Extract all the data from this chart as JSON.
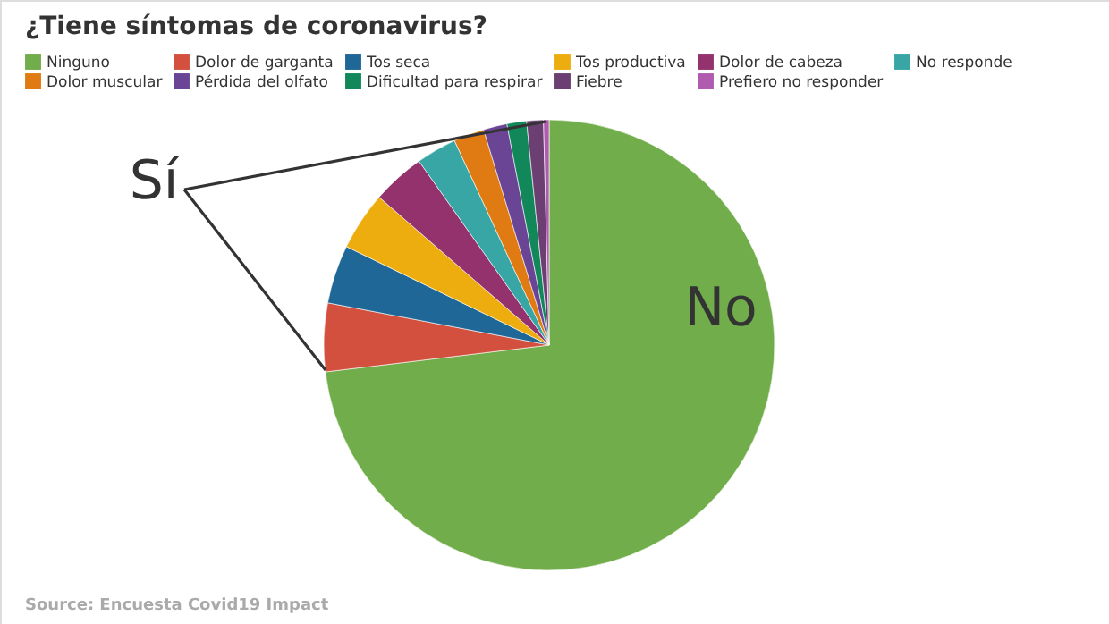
{
  "chart_data": {
    "type": "pie",
    "title": "¿Tiene síntomas de coronavirus?",
    "categories": [
      "Ninguno",
      "Dolor de garganta",
      "Tos seca",
      "Tos productiva",
      "Dolor de cabeza",
      "No responde",
      "Dolor muscular",
      "Pérdida del olfato",
      "Dificultad para respirar",
      "Fiebre",
      "Prefiero no responder"
    ],
    "values": [
      73.1,
      4.9,
      4.2,
      4.2,
      3.8,
      2.9,
      2.2,
      1.7,
      1.4,
      1.2,
      0.4
    ],
    "colors": [
      "#72ad4b",
      "#d2503d",
      "#1e6796",
      "#eead0f",
      "#94326e",
      "#39a6a6",
      "#e07b13",
      "#6a4596",
      "#12885a",
      "#6c3f73",
      "#b05bb0"
    ],
    "legend": "top",
    "annotations": [
      "Sí",
      "No",
      "Source: Encuesta Covid19 Impact"
    ]
  }
}
